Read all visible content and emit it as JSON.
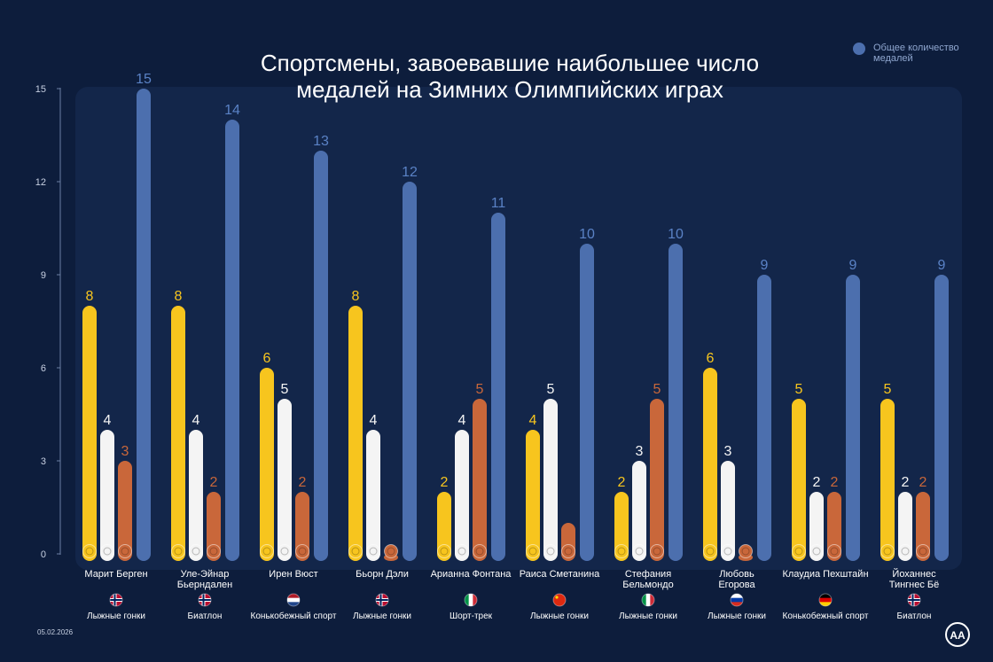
{
  "chart_data": {
    "type": "bar",
    "title": "Спортсмены, завоевавшие наибольшее число\nмедалей на Зимних Олимпийских играх",
    "categories": [
      "Марит Берген",
      "Уле-Эйнар\nБьерндален",
      "Ирен Вюст",
      "Бьорн Дэли",
      "Арианна Фонтана",
      "Раиса Сметанина",
      "Стефания\nБельмондо",
      "Любовь\nЕгорова",
      "Клаудиа Пехштайн",
      "Йоханнес\nТингнес Бё"
    ],
    "sports": [
      "Лыжные гонки",
      "Биатлон",
      "Конькобежный спорт",
      "Лыжные гонки",
      "Шорт-трек",
      "Лыжные гонки",
      "Лыжные гонки",
      "Лыжные гонки",
      "Конькобежный спорт",
      "Биатлон"
    ],
    "series": [
      {
        "color": "#f7c51e",
        "values": [
          8,
          8,
          6,
          8,
          2,
          4,
          2,
          6,
          5,
          5
        ]
      },
      {
        "color": "#f4f4f4",
        "values": [
          4,
          4,
          5,
          4,
          4,
          5,
          3,
          3,
          2,
          2
        ]
      },
      {
        "color": "#c9673a",
        "values": [
          3,
          2,
          2,
          0,
          5,
          1,
          5,
          0,
          2,
          2
        ],
        "value_labels": [
          "3",
          "2",
          "2",
          null,
          "5",
          null,
          "5",
          null,
          "2",
          "2"
        ]
      },
      {
        "name": "Общее количество\nмедалей",
        "color": "#4c6fae",
        "label_color": "#5a82c6",
        "values": [
          15,
          14,
          13,
          12,
          11,
          10,
          10,
          9,
          9,
          9
        ]
      }
    ],
    "ylim": [
      0,
      15
    ],
    "yticks": [
      0,
      3,
      6,
      9,
      12,
      15
    ],
    "grid": false,
    "legend": "top-right",
    "date": "05.02.2026"
  }
}
